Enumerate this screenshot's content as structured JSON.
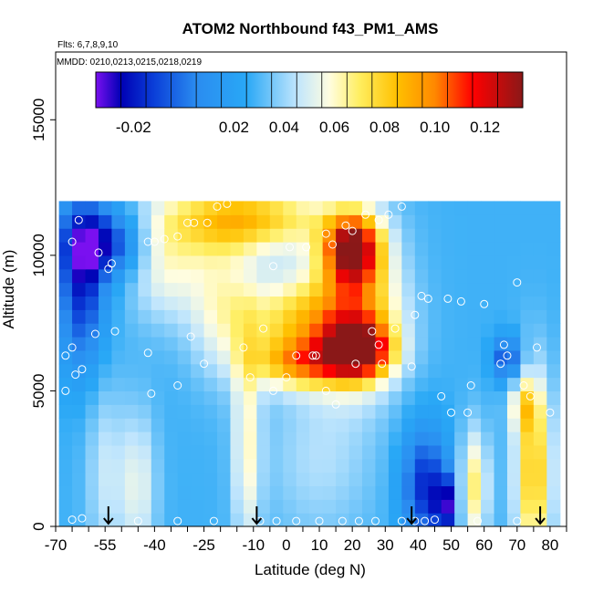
{
  "chart_data": {
    "type": "heatmap",
    "title": "ATOM2 Northbound f43_PM1_AMS",
    "subtitle_flights": "Flts: 6,7,8,9,10",
    "subtitle_dates": "MMDD: 0210,0213,0215,0218,0219",
    "xlabel": "Latitude (deg N)",
    "ylabel": "Altitude (m)",
    "xlim": [
      -70,
      85
    ],
    "ylim": [
      0,
      17500
    ],
    "x_ticks": [
      -70,
      -65,
      -60,
      -55,
      -50,
      -45,
      -40,
      -35,
      -30,
      -25,
      -20,
      -15,
      -10,
      -5,
      0,
      5,
      10,
      15,
      20,
      25,
      30,
      35,
      40,
      45,
      50,
      55,
      60,
      65,
      70,
      75,
      80,
      85
    ],
    "x_tick_labels": [
      {
        "value": -70,
        "label": "-70"
      },
      {
        "value": -55,
        "label": "-55"
      },
      {
        "value": -40,
        "label": "-40"
      },
      {
        "value": -25,
        "label": "-25"
      },
      {
        "value": -10,
        "label": "-10"
      },
      {
        "value": 0,
        "label": "0"
      },
      {
        "value": 10,
        "label": "10"
      },
      {
        "value": 20,
        "label": "20"
      },
      {
        "value": 30,
        "label": "30"
      },
      {
        "value": 40,
        "label": "40"
      },
      {
        "value": 50,
        "label": "50"
      },
      {
        "value": 60,
        "label": "60"
      },
      {
        "value": 70,
        "label": "70"
      },
      {
        "value": 80,
        "label": "80"
      }
    ],
    "y_ticks": [
      {
        "value": 0,
        "label": "0"
      },
      {
        "value": 5000,
        "label": "5000"
      },
      {
        "value": 10000,
        "label": "10000"
      },
      {
        "value": 15000,
        "label": "15000"
      }
    ],
    "colorbar": {
      "range": [
        -0.035,
        0.135
      ],
      "stops": [
        {
          "v": -0.035,
          "color": "#7a10f0"
        },
        {
          "v": -0.025,
          "color": "#0000b4"
        },
        {
          "v": -0.012,
          "color": "#0a3ed8"
        },
        {
          "v": 0.005,
          "color": "#2a8cf0"
        },
        {
          "v": 0.025,
          "color": "#29a8f6"
        },
        {
          "v": 0.045,
          "color": "#bfe5fd"
        },
        {
          "v": 0.058,
          "color": "#fffde0"
        },
        {
          "v": 0.07,
          "color": "#ffee60"
        },
        {
          "v": 0.085,
          "color": "#ffc000"
        },
        {
          "v": 0.1,
          "color": "#ff8800"
        },
        {
          "v": 0.115,
          "color": "#ff0000"
        },
        {
          "v": 0.135,
          "color": "#8a1818"
        }
      ],
      "tick_labels": [
        {
          "value": -0.02,
          "label": "-0.02"
        },
        {
          "value": 0.02,
          "label": "0.02"
        },
        {
          "value": 0.04,
          "label": "0.04"
        },
        {
          "value": 0.06,
          "label": "0.06"
        },
        {
          "value": 0.08,
          "label": "0.08"
        },
        {
          "value": 0.1,
          "label": "0.10"
        },
        {
          "value": 0.12,
          "label": "0.12"
        }
      ],
      "divider_values": [
        -0.025,
        -0.015,
        -0.005,
        0.005,
        0.015,
        0.025,
        0.035,
        0.045,
        0.055,
        0.065,
        0.075,
        0.085,
        0.095,
        0.105,
        0.115,
        0.125
      ]
    },
    "grid_x": [
      -67,
      -63,
      -59,
      -55,
      -51,
      -47,
      -43,
      -39,
      -35,
      -31,
      -27,
      -23,
      -19,
      -15,
      -11,
      -7,
      -3,
      1,
      5,
      9,
      13,
      17,
      21,
      25,
      29,
      33,
      37,
      41,
      45,
      49,
      53,
      57,
      61,
      65,
      69,
      73,
      77,
      81
    ],
    "grid_y": [
      250,
      750,
      1250,
      1750,
      2250,
      2750,
      3250,
      3750,
      4250,
      4750,
      5250,
      5750,
      6250,
      6750,
      7250,
      7750,
      8250,
      8750,
      9250,
      9750,
      10250,
      10750,
      11250,
      11750
    ],
    "grid_cell": {
      "dx": 4,
      "dy": 500
    },
    "coverage": [
      {
        "alt_max": 12000,
        "lat_min": -44,
        "lat_max": 36
      },
      {
        "alt_max": 11500,
        "lat_min": -62,
        "lat_max": 52
      },
      {
        "alt_max": 10800,
        "lat_min": -67,
        "lat_max": 62
      },
      {
        "alt_max": 10100,
        "lat_min": -68,
        "lat_max": 68
      },
      {
        "alt_max": 9400,
        "lat_min": -69,
        "lat_max": 80
      },
      {
        "alt_max": 0,
        "lat_min": -69,
        "lat_max": 81
      }
    ],
    "field_components": {
      "background": 0.028,
      "features": [
        {
          "lat": -62,
          "alt": 9000,
          "sx": 5,
          "sy": 2200,
          "amp": -0.045
        },
        {
          "lat": -55,
          "alt": 10500,
          "sx": 9,
          "sy": 900,
          "amp": -0.045
        },
        {
          "lat": -55,
          "alt": 2000,
          "sx": 4,
          "sy": 2500,
          "amp": 0.018
        },
        {
          "lat": -45,
          "alt": 1500,
          "sx": 4,
          "sy": 2000,
          "amp": 0.025
        },
        {
          "lat": -37,
          "alt": 9800,
          "sx": 8,
          "sy": 1500,
          "amp": 0.03
        },
        {
          "lat": -12,
          "alt": 11400,
          "sx": 18,
          "sy": 900,
          "amp": 0.055
        },
        {
          "lat": -20,
          "alt": 8500,
          "sx": 7,
          "sy": 2000,
          "amp": 0.025
        },
        {
          "lat": 5,
          "alt": 7500,
          "sx": 14,
          "sy": 1300,
          "amp": 0.05
        },
        {
          "lat": 5,
          "alt": 6000,
          "sx": 10,
          "sy": 600,
          "amp": 0.045
        },
        {
          "lat": 20,
          "alt": 10300,
          "sx": 6,
          "sy": 900,
          "amp": 0.09
        },
        {
          "lat": 22,
          "alt": 6500,
          "sx": 7,
          "sy": 700,
          "amp": 0.08
        },
        {
          "lat": 22,
          "alt": 8000,
          "sx": 9,
          "sy": 2000,
          "amp": 0.05
        },
        {
          "lat": -12,
          "alt": 3000,
          "sx": 3,
          "sy": 3000,
          "amp": 0.03
        },
        {
          "lat": 10,
          "alt": 2500,
          "sx": 12,
          "sy": 2200,
          "amp": 0.015
        },
        {
          "lat": 42,
          "alt": 1500,
          "sx": 5,
          "sy": 1500,
          "amp": -0.045
        },
        {
          "lat": 48,
          "alt": 800,
          "sx": 2,
          "sy": 800,
          "amp": -0.05
        },
        {
          "lat": 75,
          "alt": 2000,
          "sx": 4,
          "sy": 2500,
          "amp": 0.055
        },
        {
          "lat": 57,
          "alt": 1500,
          "sx": 3,
          "sy": 1500,
          "amp": 0.04
        },
        {
          "lat": 67,
          "alt": 6200,
          "sx": 3,
          "sy": 600,
          "amp": -0.04
        },
        {
          "lat": 72,
          "alt": 4500,
          "sx": 3,
          "sy": 700,
          "amp": 0.03
        }
      ]
    },
    "sample_points": [
      {
        "lat": -67,
        "alt": 6300
      },
      {
        "lat": -65,
        "alt": 6600
      },
      {
        "lat": -67,
        "alt": 5000
      },
      {
        "lat": -64,
        "alt": 5600
      },
      {
        "lat": -62,
        "alt": 5800
      },
      {
        "lat": -58,
        "alt": 7100
      },
      {
        "lat": -57,
        "alt": 10100
      },
      {
        "lat": -63,
        "alt": 11300
      },
      {
        "lat": -65,
        "alt": 10500
      },
      {
        "lat": -54,
        "alt": 9500
      },
      {
        "lat": -53,
        "alt": 9700
      },
      {
        "lat": -52,
        "alt": 7200
      },
      {
        "lat": -42,
        "alt": 10500
      },
      {
        "lat": -40,
        "alt": 10500
      },
      {
        "lat": -37,
        "alt": 10600
      },
      {
        "lat": -33,
        "alt": 10700
      },
      {
        "lat": -30,
        "alt": 11200
      },
      {
        "lat": -28,
        "alt": 11200
      },
      {
        "lat": -24,
        "alt": 11200
      },
      {
        "lat": -21,
        "alt": 11800
      },
      {
        "lat": -18,
        "alt": 11900
      },
      {
        "lat": -42,
        "alt": 6400
      },
      {
        "lat": -41,
        "alt": 4900
      },
      {
        "lat": -33,
        "alt": 5200
      },
      {
        "lat": -29,
        "alt": 7000
      },
      {
        "lat": -25,
        "alt": 6000
      },
      {
        "lat": -13,
        "alt": 6600
      },
      {
        "lat": -7,
        "alt": 7300
      },
      {
        "lat": -4,
        "alt": 9600
      },
      {
        "lat": 1,
        "alt": 10300
      },
      {
        "lat": -11,
        "alt": 5500
      },
      {
        "lat": -4,
        "alt": 5000
      },
      {
        "lat": 0,
        "alt": 5500
      },
      {
        "lat": 3,
        "alt": 6300
      },
      {
        "lat": 8,
        "alt": 6300
      },
      {
        "lat": 9,
        "alt": 6300
      },
      {
        "lat": 6,
        "alt": 10300
      },
      {
        "lat": 12,
        "alt": 10800
      },
      {
        "lat": 14,
        "alt": 10400
      },
      {
        "lat": 18,
        "alt": 11100
      },
      {
        "lat": 20,
        "alt": 10900
      },
      {
        "lat": 24,
        "alt": 11500
      },
      {
        "lat": 28,
        "alt": 11300
      },
      {
        "lat": 31,
        "alt": 11500
      },
      {
        "lat": 35,
        "alt": 11800
      },
      {
        "lat": 21,
        "alt": 6000
      },
      {
        "lat": 26,
        "alt": 7200
      },
      {
        "lat": 28,
        "alt": 6700
      },
      {
        "lat": 29,
        "alt": 6000
      },
      {
        "lat": 33,
        "alt": 7300
      },
      {
        "lat": 38,
        "alt": 5900
      },
      {
        "lat": 39,
        "alt": 7800
      },
      {
        "lat": 41,
        "alt": 8500
      },
      {
        "lat": 43,
        "alt": 8400
      },
      {
        "lat": 49,
        "alt": 8400
      },
      {
        "lat": 53,
        "alt": 8300
      },
      {
        "lat": 60,
        "alt": 8200
      },
      {
        "lat": 47,
        "alt": 4800
      },
      {
        "lat": 50,
        "alt": 4200
      },
      {
        "lat": 55,
        "alt": 4200
      },
      {
        "lat": 56,
        "alt": 5200
      },
      {
        "lat": 66,
        "alt": 6700
      },
      {
        "lat": 67,
        "alt": 6300
      },
      {
        "lat": 65,
        "alt": 6000
      },
      {
        "lat": 72,
        "alt": 5200
      },
      {
        "lat": 74,
        "alt": 4800
      },
      {
        "lat": 76,
        "alt": 6600
      },
      {
        "lat": 70,
        "alt": 9000
      },
      {
        "lat": 80,
        "alt": 4200
      },
      {
        "lat": -65,
        "alt": 250
      },
      {
        "lat": -62,
        "alt": 300
      },
      {
        "lat": -45,
        "alt": 200
      },
      {
        "lat": -33,
        "alt": 200
      },
      {
        "lat": -22,
        "alt": 200
      },
      {
        "lat": -8,
        "alt": 200
      },
      {
        "lat": -3,
        "alt": 200
      },
      {
        "lat": 3,
        "alt": 200
      },
      {
        "lat": 10,
        "alt": 200
      },
      {
        "lat": 17,
        "alt": 200
      },
      {
        "lat": 22,
        "alt": 200
      },
      {
        "lat": 27,
        "alt": 200
      },
      {
        "lat": 35,
        "alt": 200
      },
      {
        "lat": 39,
        "alt": 200
      },
      {
        "lat": 42,
        "alt": 200
      },
      {
        "lat": 45,
        "alt": 250
      },
      {
        "lat": 58,
        "alt": 200
      },
      {
        "lat": 70,
        "alt": 200
      },
      {
        "lat": 15,
        "alt": 4500
      },
      {
        "lat": 12,
        "alt": 5000
      }
    ],
    "arrow_markers_lat": [
      -54,
      -9,
      38,
      77
    ]
  }
}
